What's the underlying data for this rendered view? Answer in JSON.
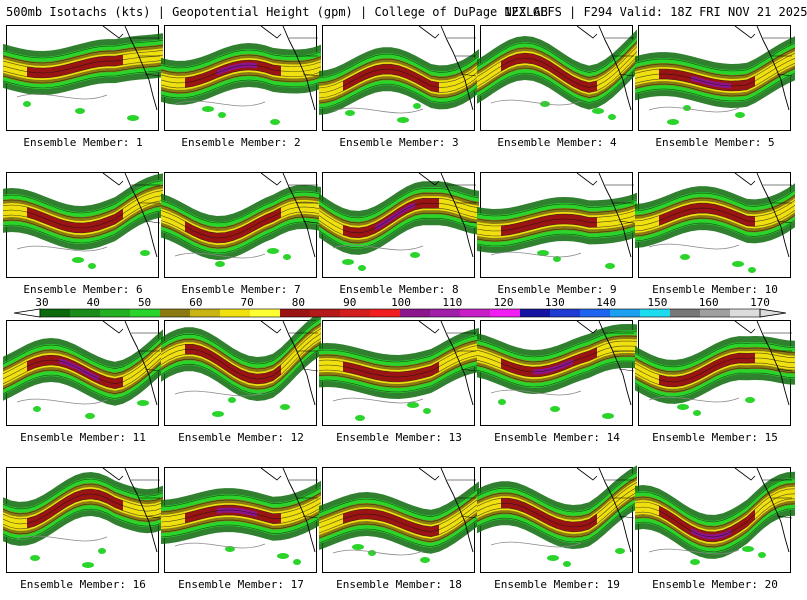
{
  "header": {
    "left": "500mb Isotachs (kts) | Geopotential Height (gpm) | College of DuPage NEXLAB",
    "right": "12Z GEFS | F294 Valid: 18Z FRI NOV 21 2025"
  },
  "members": [
    "Ensemble Member: 1",
    "Ensemble Member: 2",
    "Ensemble Member: 3",
    "Ensemble Member: 4",
    "Ensemble Member: 5",
    "Ensemble Member: 6",
    "Ensemble Member: 7",
    "Ensemble Member: 8",
    "Ensemble Member: 9",
    "Ensemble Member: 10",
    "Ensemble Member: 11",
    "Ensemble Member: 12",
    "Ensemble Member: 13",
    "Ensemble Member: 14",
    "Ensemble Member: 15",
    "Ensemble Member: 16",
    "Ensemble Member: 17",
    "Ensemble Member: 18",
    "Ensemble Member: 19",
    "Ensemble Member: 20"
  ],
  "colorbar": {
    "ticks": [
      "30",
      "40",
      "50",
      "60",
      "70",
      "80",
      "90",
      "100",
      "110",
      "120",
      "130",
      "140",
      "150",
      "160",
      "170"
    ],
    "colors": [
      "#0c6a0c",
      "#1a8c1a",
      "#22b022",
      "#2ad42a",
      "#8b7a12",
      "#c8b414",
      "#f0e010",
      "#ffff33",
      "#9a1414",
      "#b41a1a",
      "#d21e1e",
      "#f01e1e",
      "#8c148c",
      "#a01eaa",
      "#c81ec8",
      "#f01ef0",
      "#1414a0",
      "#1e3cd2",
      "#1e64f0",
      "#1ea0f0",
      "#1edcf0",
      "#787878",
      "#a0a0a0",
      "#dcdcdc"
    ],
    "fill_colors": {
      "green_dark": "#0c6a0c",
      "green_mid": "#1a8c1a",
      "green_light": "#2ad42a",
      "olive": "#8b7a12",
      "yellow": "#f0e010",
      "dark_red": "#9a1414",
      "red": "#d21e1e",
      "purple": "#8c148c",
      "blue": "#1414a0"
    }
  }
}
